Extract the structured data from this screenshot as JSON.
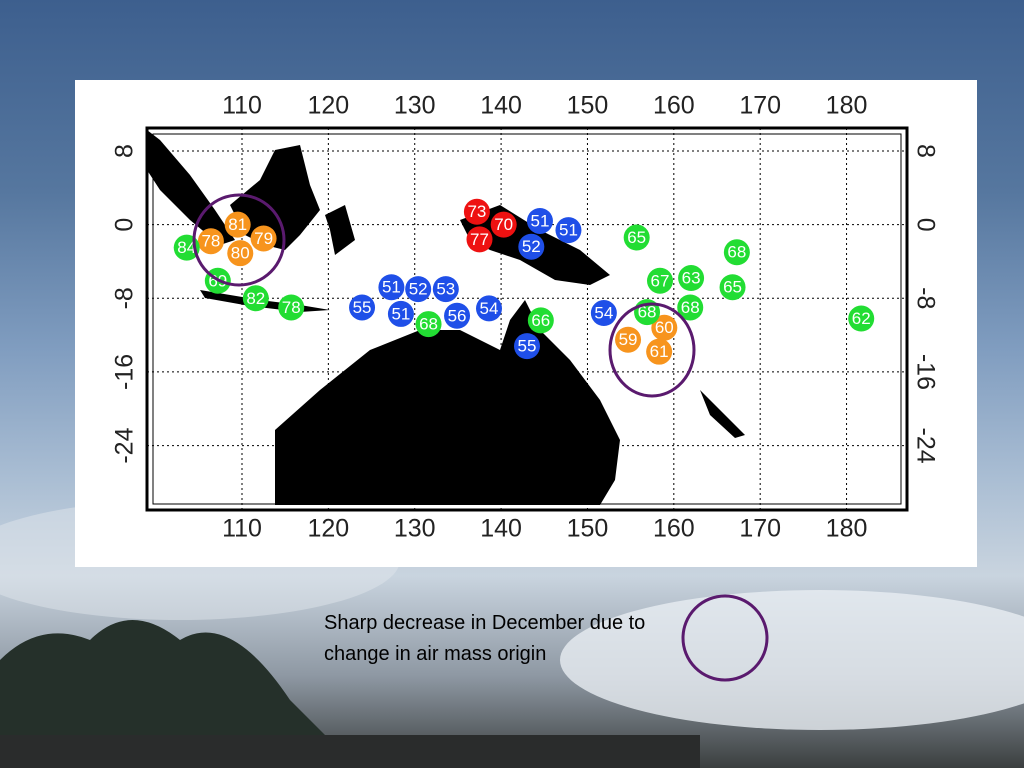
{
  "chart_data": {
    "type": "scatter",
    "xlim": [
      99,
      187
    ],
    "ylim": [
      -31,
      10.5
    ],
    "xticks": [
      110,
      120,
      130,
      140,
      150,
      160,
      170,
      180
    ],
    "yticks": [
      8,
      0,
      -8,
      -16,
      -24
    ],
    "grid": true,
    "annotation": "Sharp decrease in December due to change in air mass origin",
    "series": [
      {
        "color": "#f7941d",
        "x": [
          109.5,
          106.4,
          112.5,
          109.8,
          154.7,
          158.9,
          158.3
        ],
        "y": [
          0.0,
          -1.8,
          -1.5,
          -3.1,
          -12.5,
          -11.2,
          -13.8
        ],
        "values": [
          81,
          78,
          79,
          80,
          59,
          60,
          61
        ]
      },
      {
        "color": "#ee1111",
        "x": [
          137.2,
          140.3,
          137.5
        ],
        "y": [
          1.4,
          0.0,
          -1.6
        ],
        "values": [
          73,
          70,
          77
        ]
      },
      {
        "color": "#1f4fe8",
        "x": [
          144.5,
          147.8,
          143.5,
          123.9,
          127.3,
          130.4,
          133.6,
          128.4,
          134.9,
          138.6,
          143.0,
          151.9
        ],
        "y": [
          0.4,
          -0.6,
          -2.4,
          -9.0,
          -6.8,
          -7.0,
          -7.0,
          -9.7,
          -9.9,
          -9.1,
          -13.2,
          -9.6
        ],
        "values": [
          51,
          51,
          52,
          55,
          51,
          52,
          53,
          51,
          56,
          54,
          55,
          54
        ]
      },
      {
        "color": "#22dd33",
        "x": [
          103.6,
          107.2,
          111.6,
          115.7,
          131.6,
          144.6,
          155.7,
          167.3,
          158.4,
          162.0,
          166.8,
          156.9,
          161.9,
          181.7
        ],
        "y": [
          -2.5,
          -6.1,
          -8.0,
          -9.0,
          -10.8,
          -10.4,
          -1.4,
          -3.0,
          -6.1,
          -5.8,
          -6.8,
          -9.5,
          -9.0,
          -10.2
        ],
        "values": [
          84,
          69,
          82,
          78,
          68,
          66,
          65,
          68,
          67,
          63,
          65,
          68,
          68,
          62
        ]
      }
    ]
  }
}
